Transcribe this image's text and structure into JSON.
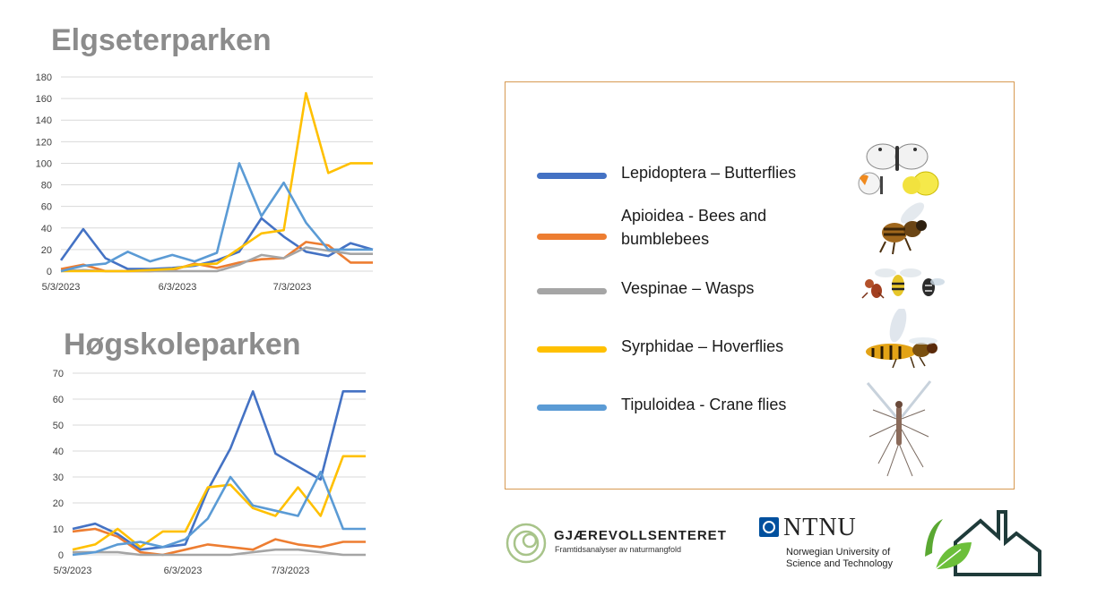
{
  "chart_data": [
    {
      "type": "line",
      "title": "Elgseterparken",
      "xlabel": "",
      "ylabel": "",
      "ylim": [
        0,
        180
      ],
      "yticks": [
        "0",
        "20",
        "40",
        "60",
        "80",
        "100",
        "120",
        "140",
        "160",
        "180"
      ],
      "xticks": [
        "5/3/2023",
        "6/3/2023",
        "7/3/2023"
      ],
      "x": [
        0,
        1,
        2,
        3,
        4,
        5,
        6,
        7,
        8,
        9,
        10,
        11,
        12,
        13,
        14
      ],
      "grid": true,
      "series": [
        {
          "name": "Lepidoptera – Butterflies",
          "color": "#4472c4",
          "values": [
            10,
            39,
            12,
            2,
            2,
            3,
            5,
            10,
            18,
            49,
            32,
            18,
            14,
            26,
            20
          ]
        },
        {
          "name": "Apioidea - Bees and bumblebees",
          "color": "#ed7d31",
          "values": [
            2,
            6,
            0,
            0,
            0,
            1,
            7,
            3,
            8,
            11,
            12,
            27,
            24,
            8,
            8
          ]
        },
        {
          "name": "Vespinae – Wasps",
          "color": "#a5a5a5",
          "values": [
            0,
            1,
            0,
            0,
            0,
            0,
            0,
            0,
            6,
            15,
            12,
            22,
            19,
            16,
            16
          ]
        },
        {
          "name": "Syrphidae – Hoverflies",
          "color": "#ffc000",
          "values": [
            0,
            0,
            0,
            0,
            1,
            2,
            6,
            7,
            21,
            35,
            38,
            165,
            91,
            100,
            100
          ]
        },
        {
          "name": "Tipuloidea - Crane flies",
          "color": "#5b9bd5",
          "values": [
            0,
            5,
            7,
            18,
            9,
            15,
            9,
            17,
            100,
            51,
            82,
            45,
            20,
            20,
            20
          ]
        }
      ]
    },
    {
      "type": "line",
      "title": "Høgskoleparken",
      "xlabel": "",
      "ylabel": "",
      "ylim": [
        0,
        70
      ],
      "yticks": [
        "0",
        "10",
        "20",
        "30",
        "40",
        "50",
        "60",
        "70"
      ],
      "xticks": [
        "5/3/2023",
        "6/3/2023",
        "7/3/2023"
      ],
      "x": [
        0,
        1,
        2,
        3,
        4,
        5,
        6,
        7,
        8,
        9,
        10,
        11,
        12,
        13
      ],
      "grid": true,
      "series": [
        {
          "name": "Lepidoptera – Butterflies",
          "color": "#4472c4",
          "values": [
            10,
            12,
            8,
            2,
            3,
            4,
            25,
            41,
            63,
            39,
            34,
            29,
            63,
            63
          ]
        },
        {
          "name": "Apioidea - Bees and bumblebees",
          "color": "#ed7d31",
          "values": [
            9,
            10,
            7,
            1,
            0,
            2,
            4,
            3,
            2,
            6,
            4,
            3,
            5,
            5
          ]
        },
        {
          "name": "Vespinae – Wasps",
          "color": "#a5a5a5",
          "values": [
            1,
            1,
            1,
            0,
            0,
            0,
            0,
            0,
            1,
            2,
            2,
            1,
            0,
            0
          ]
        },
        {
          "name": "Syrphidae – Hoverflies",
          "color": "#ffc000",
          "values": [
            2,
            4,
            10,
            3,
            9,
            9,
            26,
            27,
            18,
            15,
            26,
            15,
            38,
            38
          ]
        },
        {
          "name": "Tipuloidea - Crane flies",
          "color": "#5b9bd5",
          "values": [
            0,
            1,
            4,
            5,
            3,
            6,
            14,
            30,
            19,
            17,
            15,
            32,
            10,
            10
          ]
        }
      ]
    }
  ],
  "legend": {
    "items": [
      {
        "label": "Lepidoptera – Butterflies",
        "color": "#4472c4",
        "icon": "butterfly-icon"
      },
      {
        "label": "Apioidea - Bees and bumblebees",
        "color": "#ed7d31",
        "icon": "bee-icon"
      },
      {
        "label": "Vespinae – Wasps",
        "color": "#a5a5a5",
        "icon": "wasp-icon"
      },
      {
        "label": "Syrphidae – Hoverflies",
        "color": "#ffc000",
        "icon": "hoverfly-icon"
      },
      {
        "label": "Tipuloidea - Crane flies",
        "color": "#5b9bd5",
        "icon": "cranefly-icon"
      }
    ]
  },
  "logos": {
    "gjaerevoll_name": "GJÆREVOLLSENTERET",
    "gjaerevoll_tagline": "Framtidsanalyser av naturmangfold",
    "ntnu_name": "NTNU",
    "ntnu_full": "Norwegian University of Science and Technology"
  }
}
